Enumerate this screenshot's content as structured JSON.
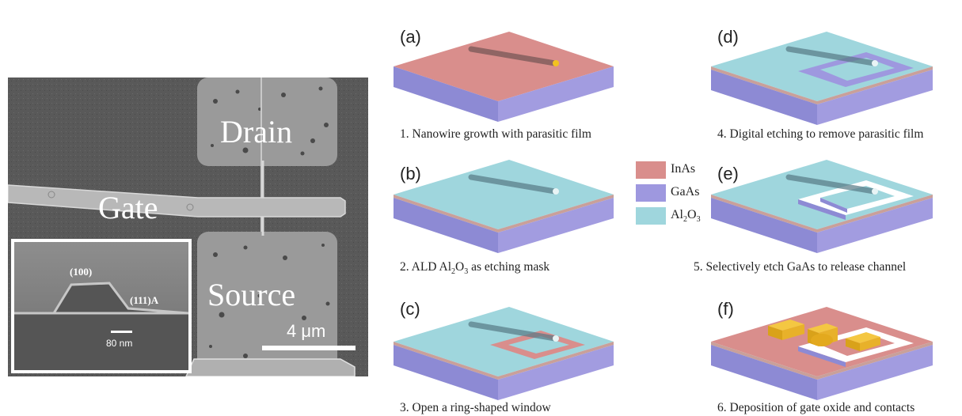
{
  "sem": {
    "drain_label": "Drain",
    "gate_label": "Gate",
    "source_label": "Source",
    "scale_bar_label": "4 μm",
    "inset": {
      "facet_top": "(100)",
      "facet_side": "(111)A",
      "scale_bar_label": "80 nm"
    }
  },
  "legend": {
    "items": [
      {
        "label": "InAs",
        "color": "#d98e8c"
      },
      {
        "label": "GaAs",
        "color": "#9e98df"
      },
      {
        "label_main": "Al",
        "label_sub": "2",
        "label_main2": "O",
        "label_sub2": "3",
        "color": "#9fd6dd"
      }
    ]
  },
  "steps": [
    {
      "label": "(a)",
      "caption": "1. Nanowire growth with parasitic film"
    },
    {
      "label": "(b)",
      "caption_pre": "2. ALD Al",
      "caption_sub": "2",
      "caption_mid": "O",
      "caption_sub2": "3",
      "caption_post": " as etching mask"
    },
    {
      "label": "(c)",
      "caption": "3. Open a ring-shaped window"
    },
    {
      "label": "(d)",
      "caption": "4. Digital etching to remove parasitic film"
    },
    {
      "label": "(e)",
      "caption": "5. Selectively etch GaAs to release channel"
    },
    {
      "label": "(f)",
      "caption": "6. Deposition of gate oxide and contacts"
    }
  ],
  "colors": {
    "inas_top": "#d98e8c",
    "gaas_side": "#9e98df",
    "al2o3_top": "#9fd6dd",
    "metal": "#f0b92a"
  }
}
